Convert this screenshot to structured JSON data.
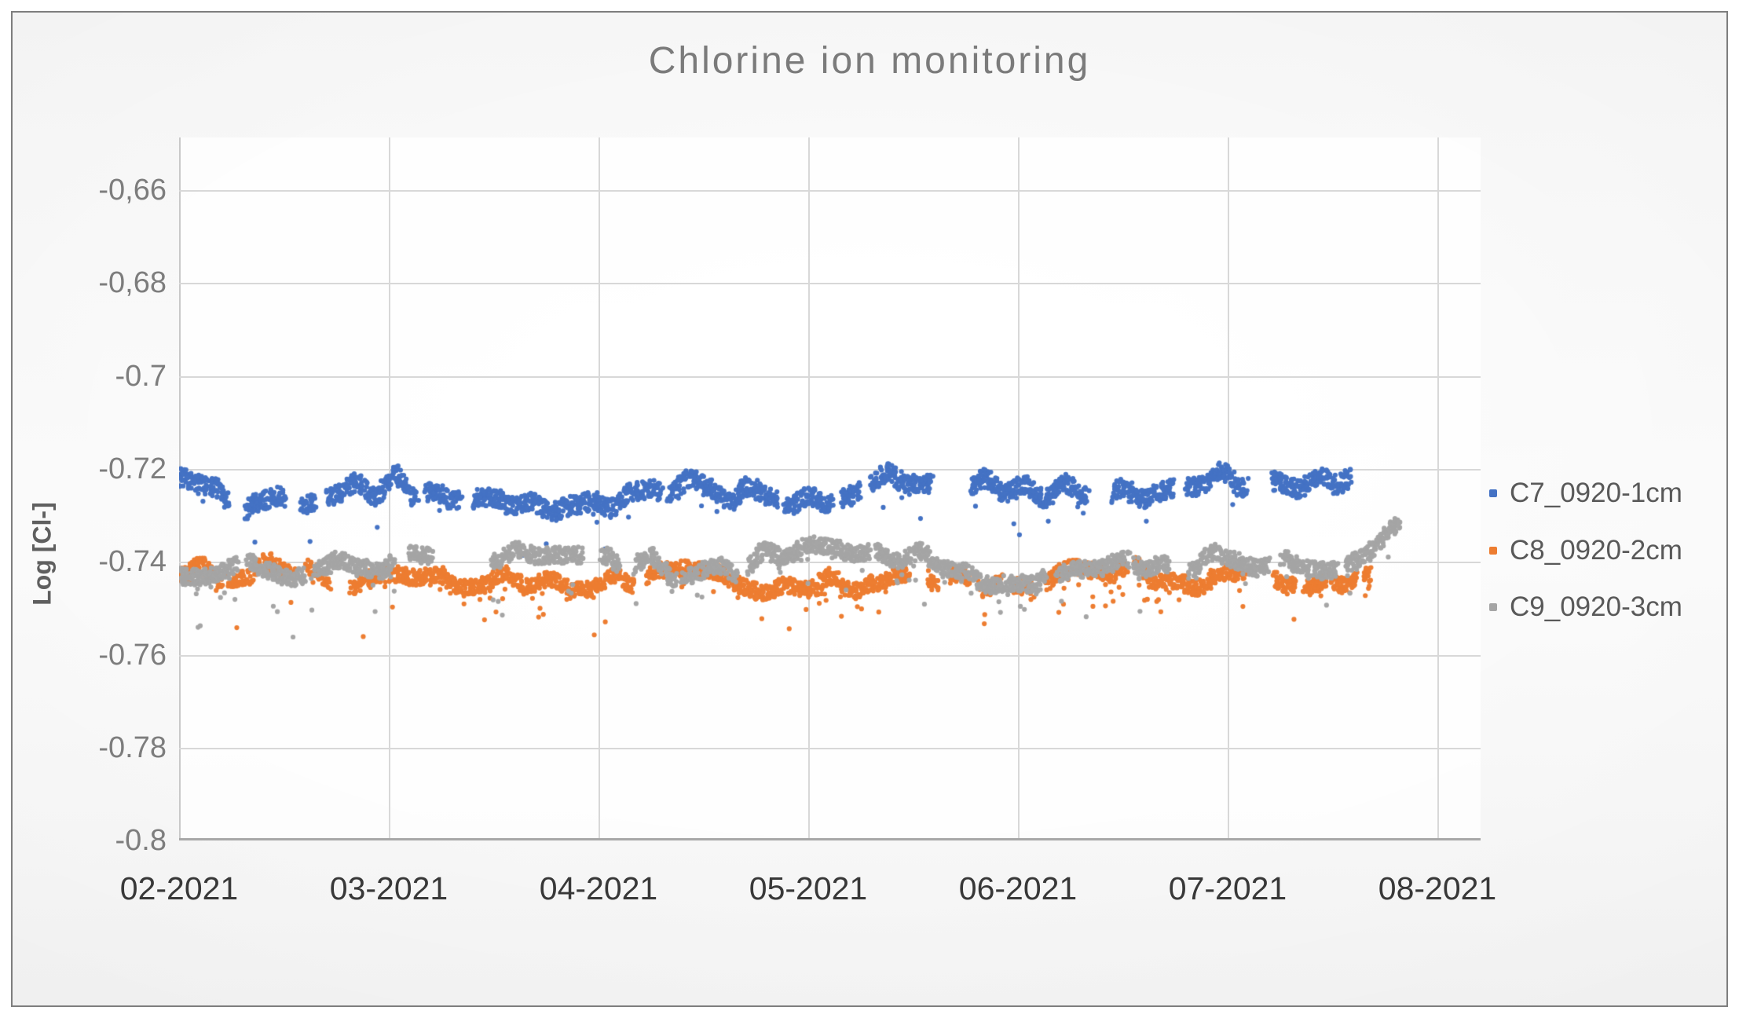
{
  "chart_data": {
    "type": "scatter",
    "title": "Chlorine ion monitoring",
    "y_axis_title": "Log [Cl-]",
    "x_tick_labels": [
      "02-2021",
      "03-2021",
      "04-2021",
      "05-2021",
      "06-2021",
      "07-2021",
      "08-2021"
    ],
    "y_tick_labels": [
      "-0,66",
      "-0,68",
      "-0.7",
      "-0.72",
      "-0.74",
      "-0.76",
      "-0.78",
      "-0.8"
    ],
    "y_axis": {
      "min": -0.8,
      "max": -0.649,
      "major_unit": 0.02,
      "tick_values": [
        -0.66,
        -0.68,
        -0.7,
        -0.72,
        -0.74,
        -0.76,
        -0.78,
        -0.8
      ]
    },
    "x_axis": {
      "start": "02-2021",
      "end": "08-2021",
      "interval": "monthly"
    },
    "grid": true,
    "legend_position": "right",
    "series": [
      {
        "name": "C7_0920-1cm",
        "color": "#4472C4",
        "approx_mean": -0.725,
        "approx_range": [
          -0.715,
          -0.736
        ],
        "data_start": "02-2021",
        "data_end": "mid 07-2021",
        "render": {
          "seed": 71,
          "n": 3000,
          "x0": 0,
          "x1": 0.931,
          "mean": -0.725,
          "amp_slow": 0.004,
          "freq_slow": 17,
          "amp_fast": 0.003,
          "freq_fast": 64,
          "jitter": 0.002,
          "spike_prob": 0.015,
          "spike_depth": 0.015,
          "gap_freq": 88,
          "gap_thresh": 0.24,
          "dot_r": 3.1
        }
      },
      {
        "name": "C8_0920-2cm",
        "color": "#ED7D31",
        "approx_mean": -0.744,
        "approx_range": [
          -0.736,
          -0.76
        ],
        "data_start": "02-2021",
        "data_end": "mid 07-2021",
        "render": {
          "seed": 82,
          "n": 3000,
          "x0": 0,
          "x1": 0.947,
          "mean": -0.744,
          "amp_slow": 0.003,
          "freq_slow": 15,
          "amp_fast": 0.0024,
          "freq_fast": 58,
          "jitter": 0.0017,
          "spike_prob": 0.05,
          "spike_depth": 0.012,
          "gap_freq": 82,
          "gap_thresh": 0.24,
          "end_lift_start": 0.92,
          "end_lift": 0.004,
          "dot_r": 3.1
        }
      },
      {
        "name": "C9_0920-3cm",
        "color": "#A5A5A5",
        "approx_mean": -0.741,
        "approx_range": [
          -0.731,
          -0.76
        ],
        "data_start": "02-2021",
        "data_end": "late 07-2021",
        "render": {
          "seed": 93,
          "n": 3200,
          "x0": 0,
          "x1": 0.978,
          "mean": -0.741,
          "amp_slow": 0.0035,
          "freq_slow": 14,
          "amp_fast": 0.0025,
          "freq_fast": 56,
          "jitter": 0.0018,
          "spike_prob": 0.04,
          "spike_depth": 0.013,
          "gap_freq": 78,
          "gap_thresh": 0.22,
          "end_lift_start": 0.92,
          "end_lift": 0.006,
          "dot_r": 3.1
        }
      }
    ]
  },
  "colors": {
    "series_blue": "#4472C4",
    "series_orange": "#ED7D31",
    "series_gray": "#A5A5A5",
    "gridline": "#d8d8d8",
    "axis_line": "#a8a8a8",
    "title_text": "#7b7b7b",
    "y_tick_text": "#7d7d7d",
    "x_tick_text": "#383838",
    "legend_text": "#595959",
    "frame_border": "#7e7e7e"
  }
}
